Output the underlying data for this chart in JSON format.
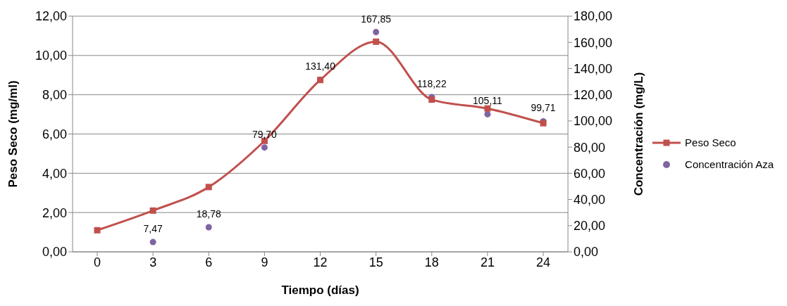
{
  "chart_data": {
    "type": "line",
    "xlabel": "Tiempo (días)",
    "ylabel": "Peso Seco (mg/ml)",
    "y2label": "Concentración (mg/L)",
    "categories": [
      "0",
      "3",
      "6",
      "9",
      "12",
      "15",
      "18",
      "21",
      "24"
    ],
    "ylim": [
      0,
      12
    ],
    "yticks": [
      {
        "value": 0,
        "label": "0,00"
      },
      {
        "value": 2,
        "label": "2,00"
      },
      {
        "value": 4,
        "label": "4,00"
      },
      {
        "value": 6,
        "label": "6,00"
      },
      {
        "value": 8,
        "label": "8,00"
      },
      {
        "value": 10,
        "label": "10,00"
      },
      {
        "value": 12,
        "label": "12,00"
      }
    ],
    "y2lim": [
      0,
      180
    ],
    "y2ticks": [
      {
        "value": 0,
        "label": "0,00"
      },
      {
        "value": 20,
        "label": "20,00"
      },
      {
        "value": 40,
        "label": "40,00"
      },
      {
        "value": 60,
        "label": "60,00"
      },
      {
        "value": 80,
        "label": "80,00"
      },
      {
        "value": 100,
        "label": "100,00"
      },
      {
        "value": 120,
        "label": "120,00"
      },
      {
        "value": 140,
        "label": "140,00"
      },
      {
        "value": 160,
        "label": "160,00"
      },
      {
        "value": 180,
        "label": "180,00"
      }
    ],
    "grid": "y",
    "legend": "right",
    "series": [
      {
        "name": "Peso Seco",
        "color": "#c0504d",
        "marker": "square",
        "values": [
          1.1,
          2.1,
          3.3,
          5.65,
          8.75,
          10.7,
          7.75,
          7.3,
          6.55
        ]
      },
      {
        "name": "Concentración Aza",
        "type": "scatter",
        "axis": "y2",
        "color": "#8064a2",
        "marker": "circle",
        "values": [
          null,
          7.47,
          18.78,
          79.7,
          131.4,
          167.85,
          118.22,
          105.11,
          99.71
        ],
        "value_labels": [
          null,
          "7,47",
          "18,78",
          "79,70",
          "131,40",
          "167,85",
          "118,22",
          "105,11",
          "99,71"
        ]
      }
    ]
  }
}
